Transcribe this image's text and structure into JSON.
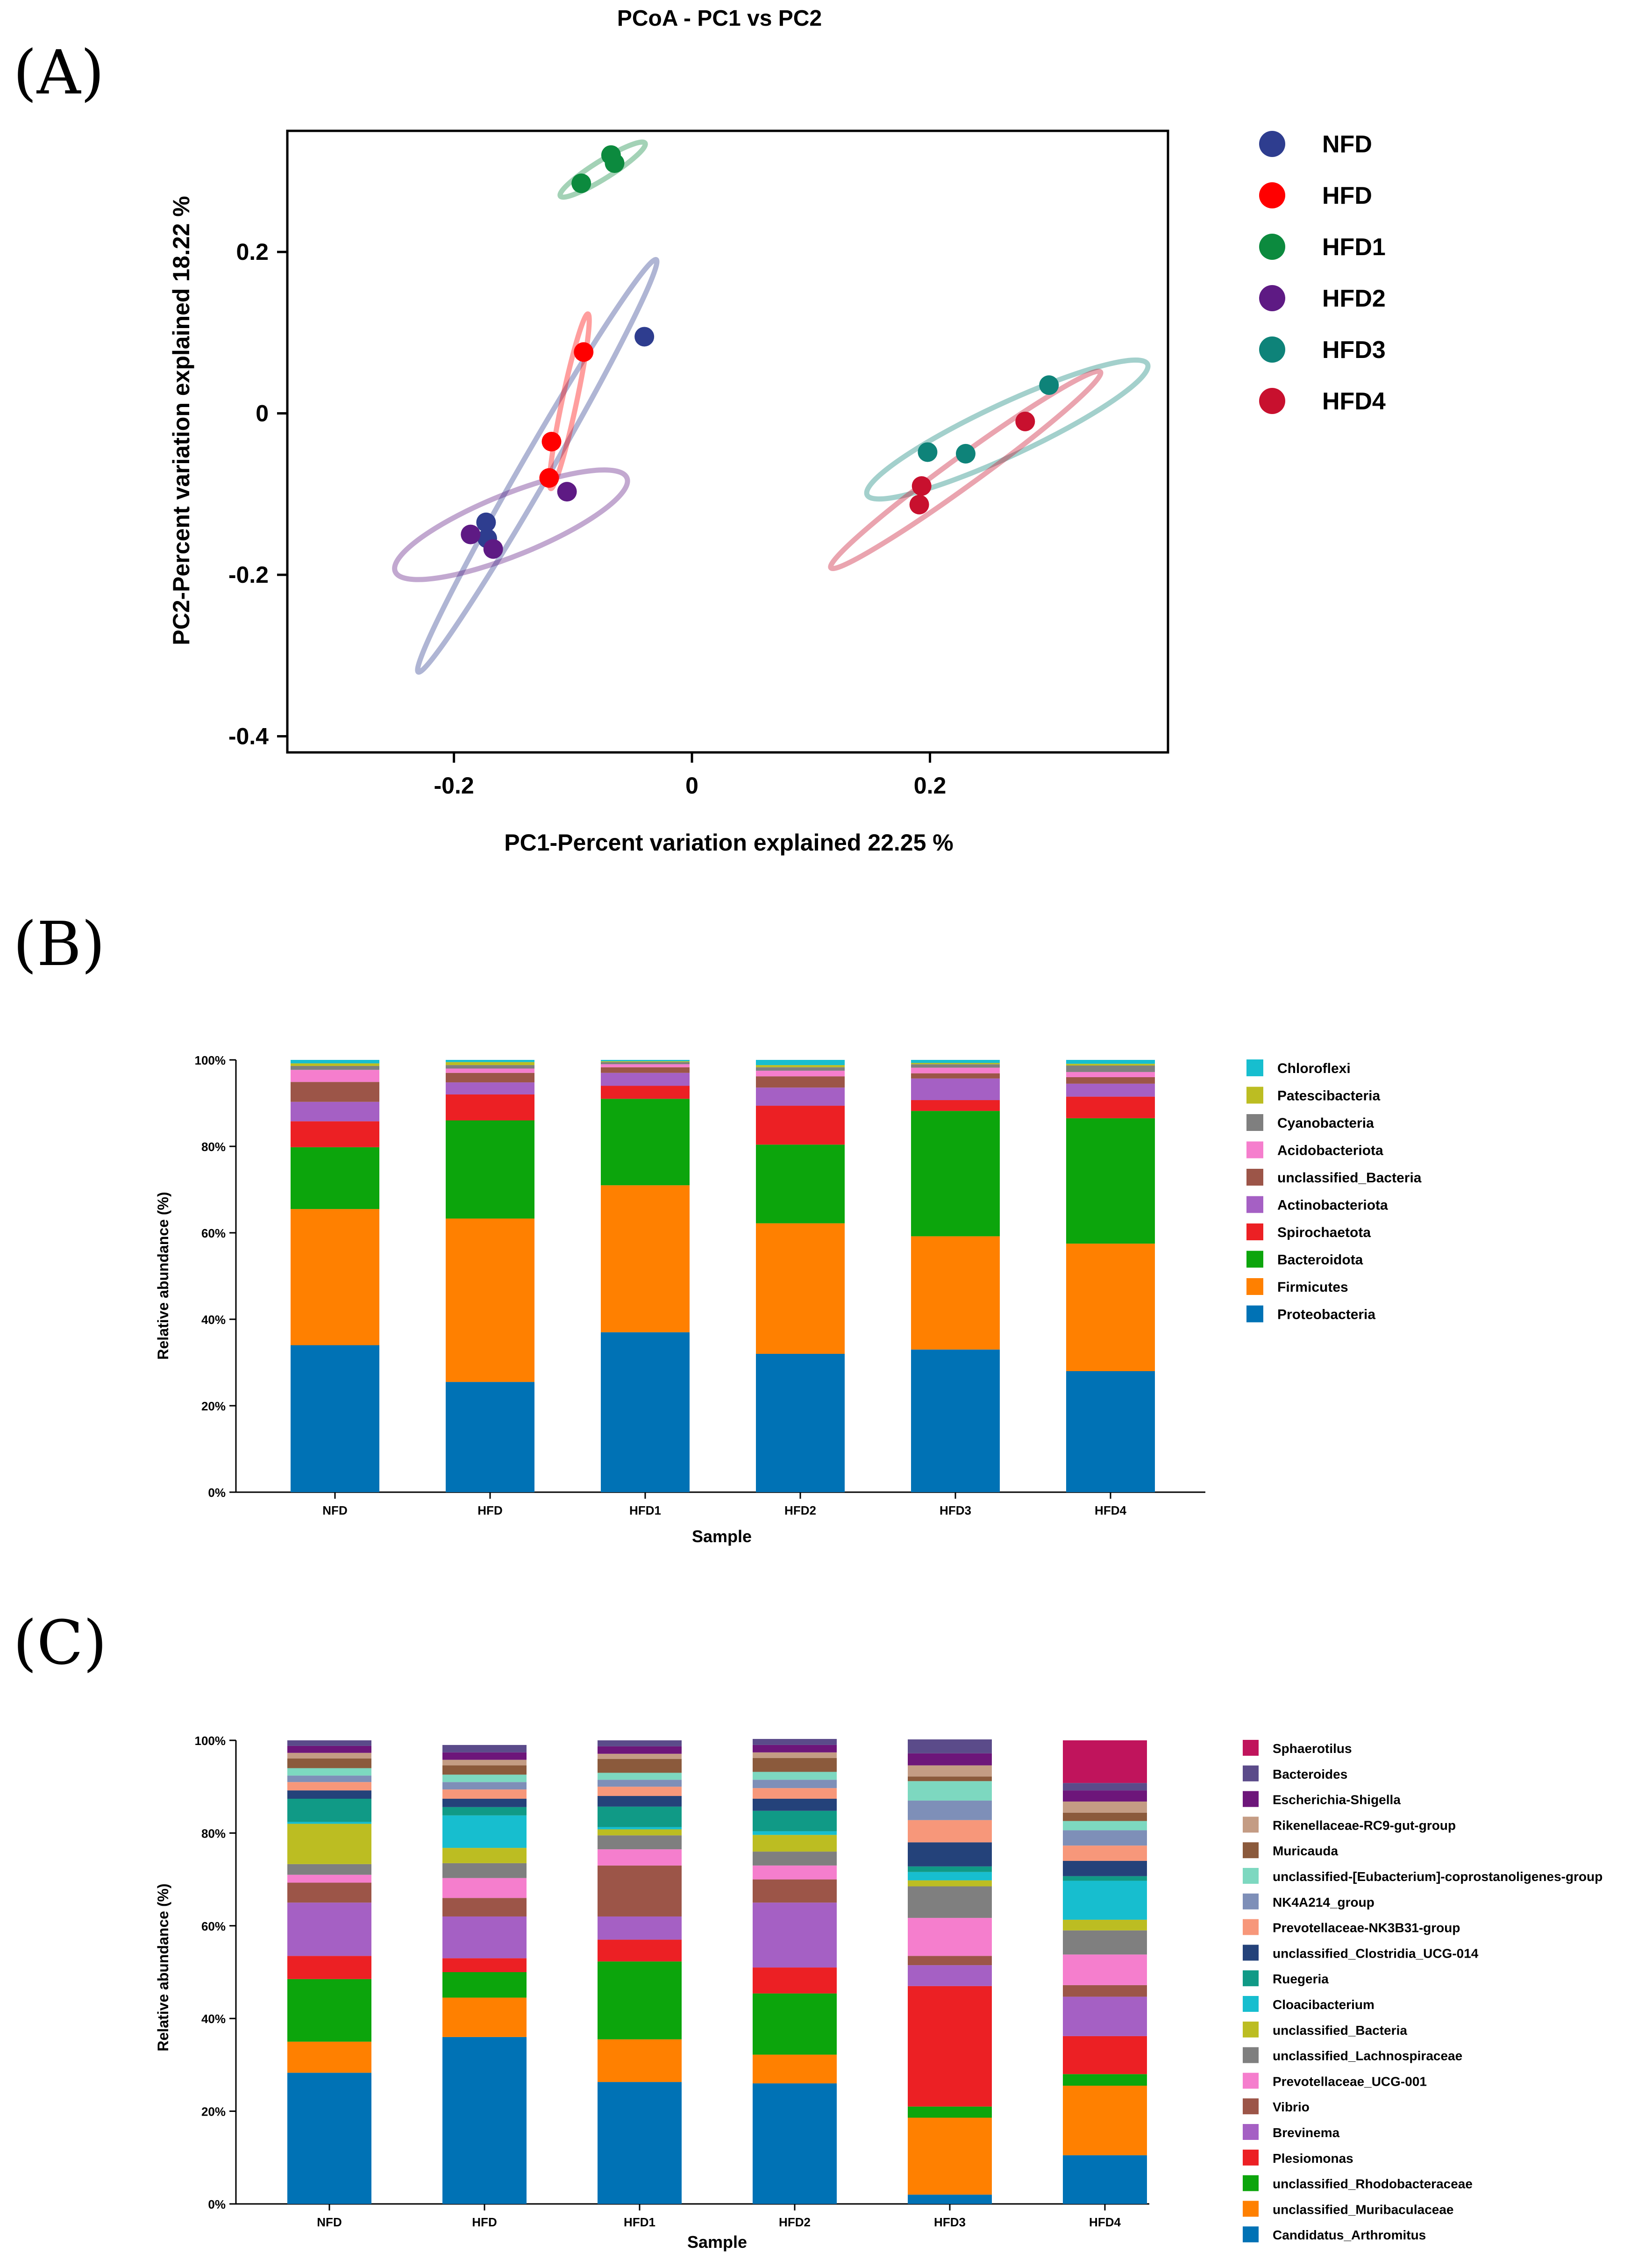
{
  "panels": {
    "a": {
      "letter": "(A)",
      "title": "PCoA - PC1 vs PC2"
    },
    "b": {
      "letter": "(B)"
    },
    "c": {
      "letter": "(C)"
    }
  },
  "colors": {
    "NFD": "#2e3d8f",
    "HFD": "#ff0000",
    "HFD1": "#0c8a3e",
    "HFD2": "#5e1a84",
    "HFD3": "#0e8379",
    "HFD4": "#c8102e"
  },
  "chart_data": [
    {
      "id": "pcoa",
      "type": "scatter",
      "title": "PCoA - PC1 vs PC2",
      "xlabel": "PC1-Percent variation explained 22.25 %",
      "ylabel": "PC2-Percent variation explained 18.22 %",
      "xlim": [
        -0.34,
        0.4
      ],
      "ylim": [
        -0.42,
        0.35
      ],
      "xticks": [
        -0.2,
        0,
        0.2
      ],
      "xtick_labels": [
        "-0.2",
        "0",
        "0.2"
      ],
      "yticks": [
        -0.4,
        -0.2,
        0,
        0.2
      ],
      "ytick_labels": [
        "-0.4",
        "-0.2",
        "0",
        "0.2"
      ],
      "legend": [
        {
          "key": "NFD",
          "label": "NFD"
        },
        {
          "key": "HFD",
          "label": "HFD"
        },
        {
          "key": "HFD1",
          "label": "HFD1"
        },
        {
          "key": "HFD2",
          "label": "HFD2"
        },
        {
          "key": "HFD3",
          "label": "HFD3"
        },
        {
          "key": "HFD4",
          "label": "HFD4"
        }
      ],
      "series": [
        {
          "name": "NFD",
          "points": [
            [
              -0.04,
              0.095
            ],
            [
              -0.173,
              -0.135
            ],
            [
              -0.172,
              -0.155
            ]
          ],
          "ellipse": {
            "cx": -0.13,
            "cy": -0.065,
            "rx": 0.2,
            "ry": 0.018,
            "angle": -60
          }
        },
        {
          "name": "HFD",
          "points": [
            [
              -0.091,
              0.076
            ],
            [
              -0.118,
              -0.035
            ],
            [
              -0.12,
              -0.08
            ]
          ],
          "ellipse": {
            "cx": -0.103,
            "cy": 0.015,
            "rx": 0.075,
            "ry": 0.009,
            "angle": -78
          }
        },
        {
          "name": "HFD1",
          "points": [
            [
              -0.093,
              0.285
            ],
            [
              -0.068,
              0.32
            ],
            [
              -0.065,
              0.31
            ]
          ],
          "ellipse": {
            "cx": -0.075,
            "cy": 0.302,
            "rx": 0.042,
            "ry": 0.011,
            "angle": -32
          }
        },
        {
          "name": "HFD2",
          "points": [
            [
              -0.186,
              -0.15
            ],
            [
              -0.167,
              -0.168
            ],
            [
              -0.105,
              -0.097
            ]
          ],
          "ellipse": {
            "cx": -0.152,
            "cy": -0.138,
            "rx": 0.105,
            "ry": 0.038,
            "angle": -22
          }
        },
        {
          "name": "HFD3",
          "points": [
            [
              0.3,
              0.035
            ],
            [
              0.23,
              -0.05
            ],
            [
              0.198,
              -0.048
            ]
          ],
          "ellipse": {
            "cx": 0.265,
            "cy": -0.02,
            "rx": 0.13,
            "ry": 0.032,
            "angle": -25
          }
        },
        {
          "name": "HFD4",
          "points": [
            [
              0.28,
              -0.01
            ],
            [
              0.193,
              -0.09
            ],
            [
              0.191,
              -0.113
            ]
          ],
          "ellipse": {
            "cx": 0.23,
            "cy": -0.07,
            "rx": 0.14,
            "ry": 0.018,
            "angle": -36
          }
        }
      ]
    },
    {
      "id": "phylum",
      "type": "bar",
      "stacked": true,
      "xlabel": "Sample",
      "ylabel": "Relative abundance (%)",
      "ylim": [
        0,
        100
      ],
      "yticks": [
        0,
        20,
        40,
        60,
        80,
        100
      ],
      "ytick_labels": [
        "0%",
        "20%",
        "40%",
        "60%",
        "80%",
        "100%"
      ],
      "categories": [
        "NFD",
        "HFD",
        "HFD1",
        "HFD2",
        "HFD3",
        "HFD4"
      ],
      "series": [
        {
          "name": "Proteobacteria",
          "color": "#0072b5",
          "values": [
            34,
            25.5,
            37,
            32,
            33,
            28
          ]
        },
        {
          "name": "Firmicutes",
          "color": "#ff8000",
          "values": [
            31.5,
            37.8,
            34,
            30.2,
            26.2,
            29.5
          ]
        },
        {
          "name": "Bacteroidota",
          "color": "#0ca50c",
          "values": [
            14.3,
            22.7,
            20,
            18.2,
            29,
            29
          ]
        },
        {
          "name": "Spirochaetota",
          "color": "#ec2024",
          "values": [
            6,
            6,
            3,
            9,
            2.5,
            5
          ]
        },
        {
          "name": "Actinobacteriota",
          "color": "#a560c4",
          "values": [
            4.5,
            2.8,
            3,
            4.2,
            5,
            3
          ]
        },
        {
          "name": "unclassified_Bacteria",
          "color": "#9c5548",
          "values": [
            4.6,
            2.2,
            1.3,
            2.6,
            1.2,
            1.5
          ]
        },
        {
          "name": "Acidobacteriota",
          "color": "#f57ecd",
          "values": [
            2.8,
            1,
            0.7,
            1.3,
            1.3,
            1.2
          ]
        },
        {
          "name": "Cyanobacteria",
          "color": "#7f7f7f",
          "values": [
            0.9,
            0.8,
            0.5,
            0.8,
            0.8,
            1.5
          ]
        },
        {
          "name": "Patescibacteria",
          "color": "#bcbd22",
          "values": [
            0.6,
            0.7,
            0.2,
            0.5,
            0.3,
            0.4
          ]
        },
        {
          "name": "Chloroflexi",
          "color": "#17becf",
          "values": [
            0.8,
            0.5,
            0.3,
            1.2,
            0.7,
            0.9
          ]
        }
      ]
    },
    {
      "id": "genus",
      "type": "bar",
      "stacked": true,
      "xlabel": "Sample",
      "ylabel": "Relative abundance (%)",
      "ylim": [
        0,
        100
      ],
      "yticks": [
        0,
        20,
        40,
        60,
        80,
        100
      ],
      "ytick_labels": [
        "0%",
        "20%",
        "40%",
        "60%",
        "80%",
        "100%"
      ],
      "categories": [
        "NFD",
        "HFD",
        "HFD1",
        "HFD2",
        "HFD3",
        "HFD4"
      ],
      "series": [
        {
          "name": "Candidatus_Arthromitus",
          "color": "#0072b5",
          "values": [
            28.3,
            36,
            26.3,
            26,
            2,
            10.5
          ]
        },
        {
          "name": "unclassified_Muribaculaceae",
          "color": "#ff8000",
          "values": [
            6.7,
            8.5,
            9.2,
            6.2,
            16.6,
            15
          ]
        },
        {
          "name": "unclassified_Rhodobacteraceae",
          "color": "#0ca50c",
          "values": [
            13.5,
            5.5,
            16.8,
            13.2,
            2.4,
            2.5
          ]
        },
        {
          "name": "Plesiomonas",
          "color": "#ec2024",
          "values": [
            5,
            3,
            4.7,
            5.6,
            26,
            8.2
          ]
        },
        {
          "name": "Brevinema",
          "color": "#a560c4",
          "values": [
            11.5,
            9,
            5,
            14,
            4.5,
            8.5
          ]
        },
        {
          "name": "Vibrio",
          "color": "#9c5548",
          "values": [
            4.3,
            4,
            11,
            5,
            2,
            2.5
          ]
        },
        {
          "name": "Prevotellaceae_UCG-001",
          "color": "#f57ecd",
          "values": [
            1.7,
            4.3,
            3.5,
            3,
            8.2,
            6.6
          ]
        },
        {
          "name": "unclassified_Lachnospiraceae",
          "color": "#7f7f7f",
          "values": [
            2.3,
            3.2,
            3,
            3,
            6.8,
            5.2
          ]
        },
        {
          "name": "unclassified_Bacteria",
          "color": "#bcbd22",
          "values": [
            8.7,
            3.3,
            1.3,
            3.6,
            1.3,
            2.3
          ]
        },
        {
          "name": "Cloacibacterium",
          "color": "#17becf",
          "values": [
            0.4,
            7,
            0.5,
            0.8,
            1.8,
            8.4
          ]
        },
        {
          "name": "Ruegeria",
          "color": "#109a86",
          "values": [
            5,
            1.8,
            4.4,
            4.4,
            1.2,
            1
          ]
        },
        {
          "name": "unclassified_Clostridia_UCG-014",
          "color": "#24427a",
          "values": [
            1.8,
            1.8,
            2.3,
            2.6,
            5.2,
            3.3
          ]
        },
        {
          "name": "Prevotellaceae-NK3B31-group",
          "color": "#f7977a",
          "values": [
            1.8,
            2,
            2,
            2.3,
            4.8,
            3.3
          ]
        },
        {
          "name": "NK4A214_group",
          "color": "#7e8fb8",
          "values": [
            1.4,
            1.6,
            1.5,
            1.8,
            4.2,
            3.3
          ]
        },
        {
          "name": "unclassified-[Eubacterium]-coprostanoligenes-group",
          "color": "#7dd8c0",
          "values": [
            1.6,
            1.6,
            1.5,
            1.7,
            4.2,
            2
          ]
        },
        {
          "name": "Muricauda",
          "color": "#8b5a3c",
          "values": [
            2.1,
            2,
            3,
            3,
            1,
            1.8
          ]
        },
        {
          "name": "Rikenellaceae-RC9-gut-group",
          "color": "#c49c84",
          "values": [
            1.2,
            1.2,
            1.1,
            1.2,
            2.4,
            2.4
          ]
        },
        {
          "name": "Escherichia-Shigella",
          "color": "#6d167a",
          "values": [
            1.5,
            1.6,
            1.6,
            1.6,
            2.6,
            2.4
          ]
        },
        {
          "name": "Bacteroides",
          "color": "#5b4b8a",
          "values": [
            1.2,
            1.6,
            1.3,
            1.3,
            3,
            1.6
          ]
        },
        {
          "name": "Sphaerotilus",
          "color": "#c0145c",
          "values": [
            0,
            0,
            0,
            0,
            0,
            9.2
          ]
        }
      ]
    }
  ]
}
